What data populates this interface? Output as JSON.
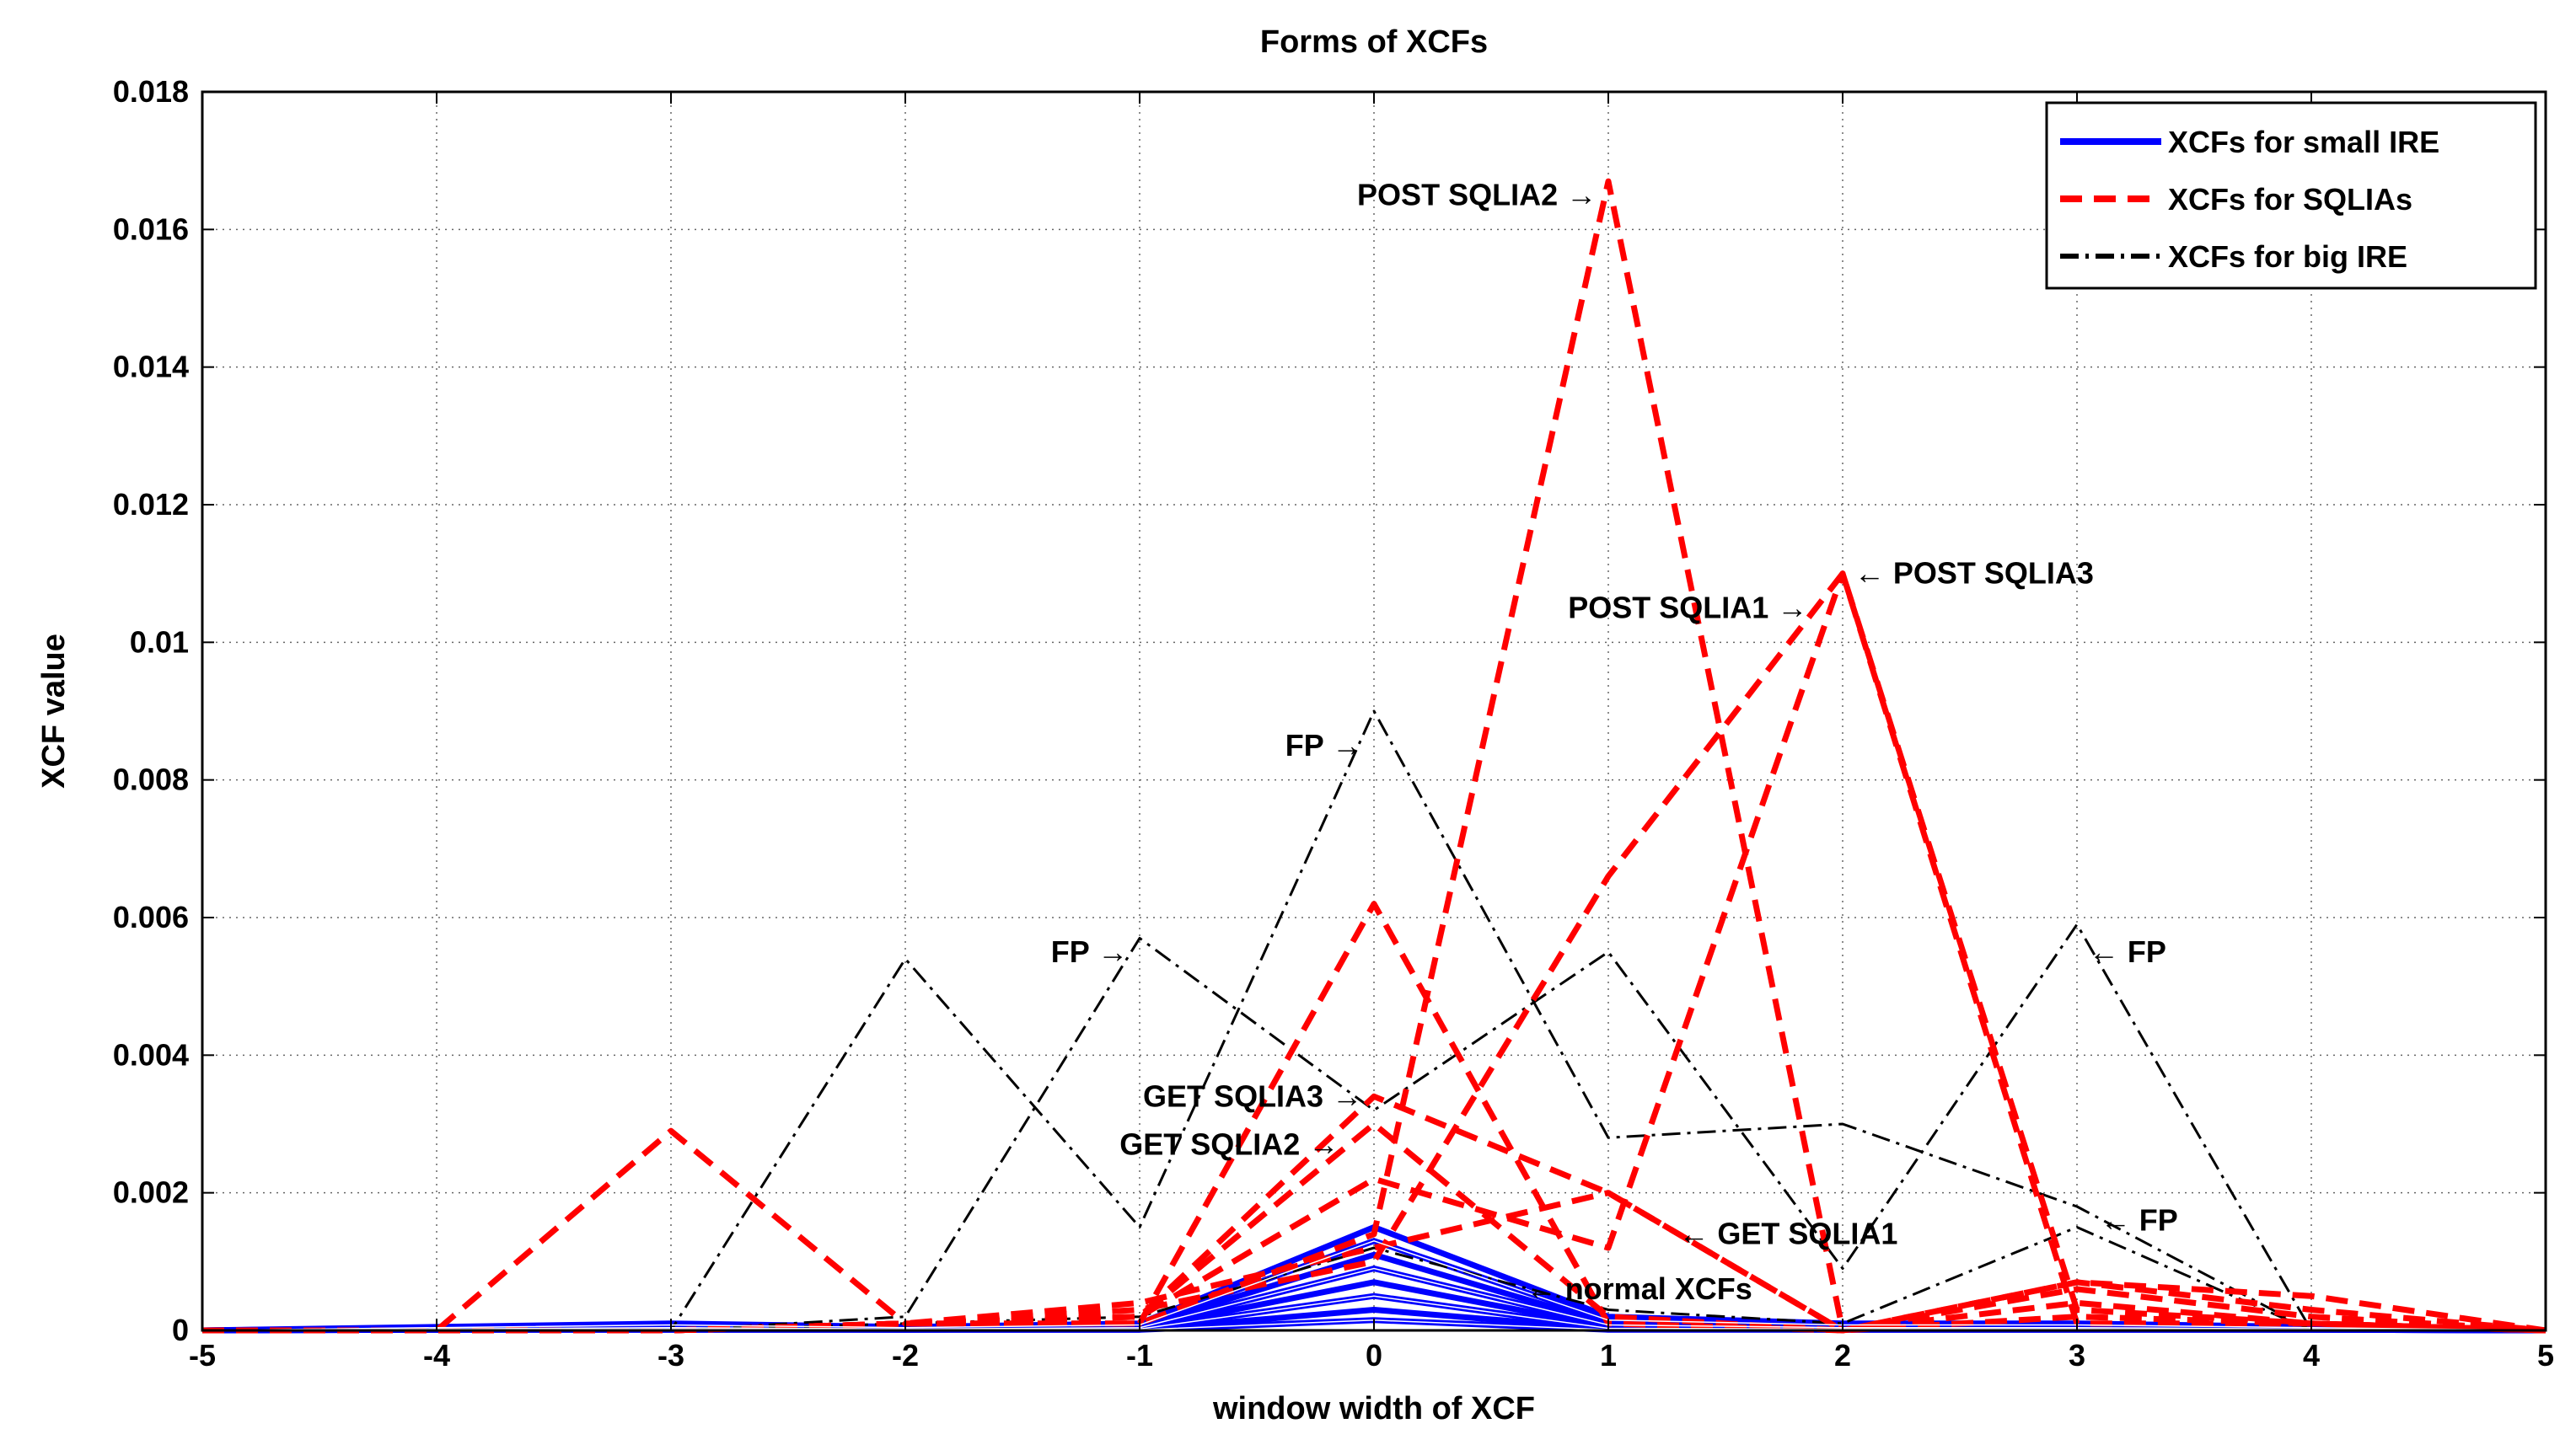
{
  "chart_data": {
    "type": "line",
    "title": "Forms of XCFs",
    "xlabel": "window width of XCF",
    "ylabel": "XCF value",
    "xlim": [
      -5,
      5
    ],
    "ylim": [
      0,
      0.018
    ],
    "xticks": [
      -5,
      -4,
      -3,
      -2,
      -1,
      0,
      1,
      2,
      3,
      4,
      5
    ],
    "yticks": [
      0,
      0.002,
      0.004,
      0.006,
      0.008,
      0.01,
      0.012,
      0.014,
      0.016,
      0.018
    ],
    "xtick_labels": [
      "-5",
      "-4",
      "-3",
      "-2",
      "-1",
      "0",
      "1",
      "2",
      "3",
      "4",
      "5"
    ],
    "ytick_labels": [
      "0",
      "0.002",
      "0.004",
      "0.006",
      "0.008",
      "0.01",
      "0.012",
      "0.014",
      "0.016",
      "0.018"
    ],
    "grid": true,
    "legend_position": "top-right",
    "legend": [
      {
        "label": "XCFs for small IRE",
        "color": "#0000ff",
        "style": "solid"
      },
      {
        "label": "XCFs for SQLIAs",
        "color": "#ff0000",
        "style": "dashed"
      },
      {
        "label": "XCFs for big IRE",
        "color": "#000000",
        "style": "dashdot"
      }
    ],
    "x": [
      -5,
      -4,
      -3,
      -2,
      -1,
      0,
      1,
      2,
      3,
      4,
      5
    ],
    "series": [
      {
        "group": "small",
        "values": [
          0,
          5e-05,
          0.0001,
          5e-05,
          0.0001,
          0.0015,
          0.0002,
          0.0001,
          0.0001,
          5e-05,
          0
        ]
      },
      {
        "group": "small",
        "values": [
          0,
          4e-05,
          8e-05,
          4e-05,
          8e-05,
          0.0013,
          0.00015,
          8e-05,
          8e-05,
          4e-05,
          0
        ]
      },
      {
        "group": "small",
        "values": [
          0,
          3e-05,
          6e-05,
          3e-05,
          6e-05,
          0.0011,
          0.0001,
          6e-05,
          6e-05,
          3e-05,
          0
        ]
      },
      {
        "group": "small",
        "values": [
          0,
          2e-05,
          4e-05,
          2e-05,
          4e-05,
          0.0009,
          8e-05,
          4e-05,
          4e-05,
          2e-05,
          0
        ]
      },
      {
        "group": "small",
        "values": [
          0,
          2e-05,
          3e-05,
          2e-05,
          3e-05,
          0.0007,
          5e-05,
          3e-05,
          3e-05,
          2e-05,
          0
        ]
      },
      {
        "group": "small",
        "values": [
          0,
          1e-05,
          2e-05,
          1e-05,
          2e-05,
          0.0005,
          3e-05,
          2e-05,
          2e-05,
          1e-05,
          0
        ]
      },
      {
        "group": "small",
        "values": [
          0,
          1e-05,
          1e-05,
          1e-05,
          1e-05,
          0.0003,
          2e-05,
          1e-05,
          1e-05,
          1e-05,
          0
        ]
      },
      {
        "group": "small",
        "values": [
          0,
          1e-05,
          1e-05,
          1e-05,
          1e-05,
          0.00015,
          1e-05,
          1e-05,
          1e-05,
          1e-05,
          0
        ]
      },
      {
        "group": "big",
        "values": [
          0,
          0,
          0,
          0.0054,
          0.0015,
          0.009,
          0.0028,
          0.003,
          0.0018,
          0,
          0
        ]
      },
      {
        "group": "big",
        "values": [
          0,
          0,
          0,
          0.0002,
          0.0057,
          0.0032,
          0.0055,
          0.0009,
          0.0059,
          0,
          0
        ]
      },
      {
        "group": "big",
        "values": [
          0,
          0,
          0,
          0.0001,
          0.0002,
          0.0012,
          0.0003,
          0.0001,
          0.0015,
          0,
          0
        ]
      },
      {
        "group": "sqlia",
        "values": [
          0,
          0,
          0.0029,
          0.0001,
          0.0001,
          0.0062,
          0.0001,
          0,
          0.0007,
          0.0005,
          0
        ]
      },
      {
        "group": "sqlia",
        "values": [
          0,
          0,
          0,
          0.0001,
          0.0001,
          0.0014,
          0.0167,
          0,
          0.0006,
          0.0002,
          0
        ]
      },
      {
        "group": "sqlia",
        "values": [
          0,
          0,
          0,
          0.0001,
          0.0003,
          0.001,
          0.0066,
          0.011,
          0.0003,
          0.0001,
          0
        ]
      },
      {
        "group": "sqlia",
        "values": [
          0,
          0,
          0,
          0.0001,
          0.0002,
          0.0022,
          0.0012,
          0.011,
          0.0001,
          0.0001,
          0
        ]
      },
      {
        "group": "sqlia",
        "values": [
          0,
          0,
          0,
          0.0001,
          0.0002,
          0.0034,
          0.002,
          0,
          0.0004,
          0.0001,
          0
        ]
      },
      {
        "group": "sqlia",
        "values": [
          0,
          0,
          0,
          0.0001,
          0.0002,
          0.003,
          0.0002,
          0,
          0.0002,
          0.0001,
          0
        ]
      },
      {
        "group": "sqlia",
        "values": [
          0,
          0,
          0,
          0.0001,
          0.0004,
          0.0012,
          0.002,
          0,
          0.0007,
          0.0003,
          0
        ]
      }
    ],
    "annotations": [
      {
        "text": "POST SQLIA2 →",
        "x": 0.95,
        "y": 0.0165,
        "anchor": "end"
      },
      {
        "text": "← POST SQLIA3",
        "x": 2.05,
        "y": 0.011,
        "anchor": "start"
      },
      {
        "text": "POST SQLIA1 →",
        "x": 1.85,
        "y": 0.0105,
        "anchor": "end"
      },
      {
        "text": "FP →",
        "x": -0.05,
        "y": 0.0085,
        "anchor": "end"
      },
      {
        "text": "FP →",
        "x": -1.05,
        "y": 0.0055,
        "anchor": "end"
      },
      {
        "text": "← FP",
        "x": 3.05,
        "y": 0.0055,
        "anchor": "start"
      },
      {
        "text": "GET SQLIA3 →",
        "x": -0.05,
        "y": 0.0034,
        "anchor": "end"
      },
      {
        "text": "GET SQLIA2 →",
        "x": -0.15,
        "y": 0.0027,
        "anchor": "end"
      },
      {
        "text": "← GET SQLIA1",
        "x": 1.3,
        "y": 0.0014,
        "anchor": "start"
      },
      {
        "text": "← FP",
        "x": 3.1,
        "y": 0.0016,
        "anchor": "start"
      },
      {
        "text": "← normal XCFs",
        "x": 0.65,
        "y": 0.0006,
        "anchor": "start"
      }
    ]
  }
}
